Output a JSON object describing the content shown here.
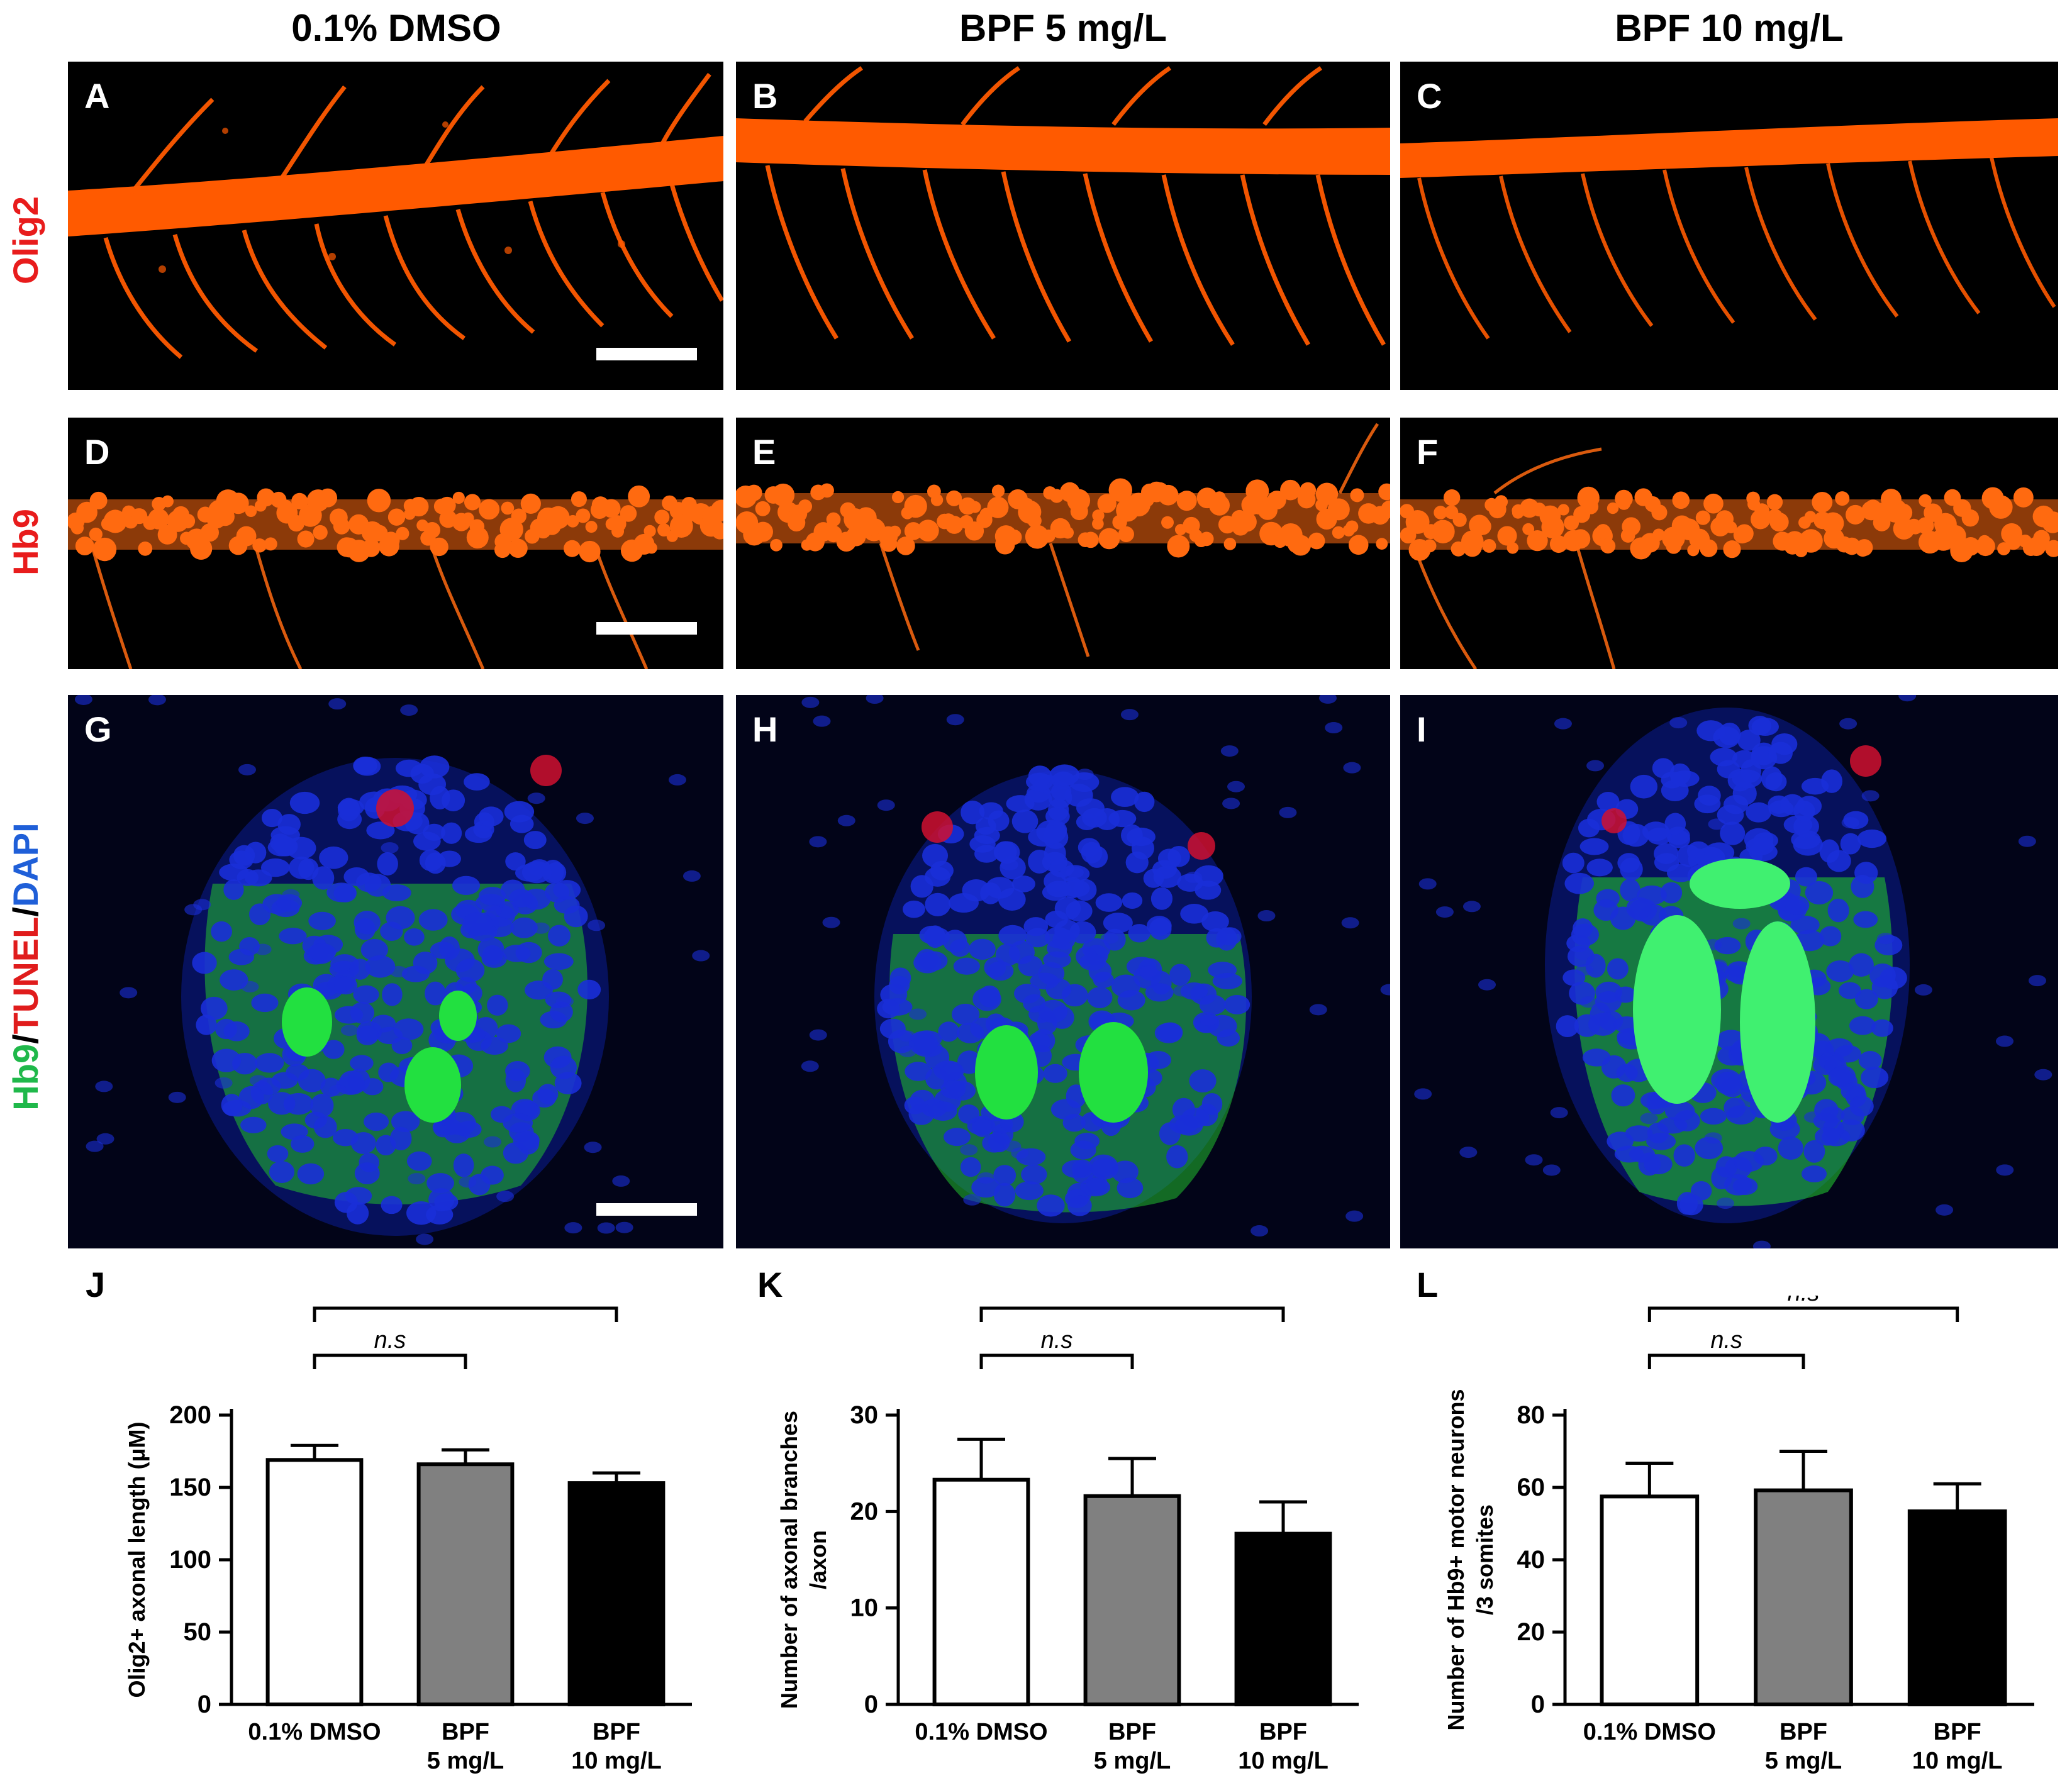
{
  "columns": [
    "0.1% DMSO",
    "BPF 5 mg/L",
    "BPF 10 mg/L"
  ],
  "row_labels": {
    "olig2": "Olig2",
    "hb9": "Hb9",
    "triple": {
      "hb9": "Hb9",
      "sep1": "/",
      "tunel": "TUNEL",
      "sep2": "/",
      "dapi": "DAPI"
    }
  },
  "panel_letters": [
    "A",
    "B",
    "C",
    "D",
    "E",
    "F",
    "G",
    "H",
    "I"
  ],
  "colors": {
    "olig2": "#ff5a00",
    "hb9_red": "#ff6a10",
    "dapi": "#1a2fd8",
    "hb9_green": "#22e040",
    "tunel": "#d01030"
  },
  "chart_data": [
    {
      "letter": "J",
      "type": "bar",
      "categories": [
        [
          "0.1% DMSO"
        ],
        [
          "BPF",
          "5 mg/L"
        ],
        [
          "BPF",
          "10 mg/L"
        ]
      ],
      "values": [
        169,
        166,
        153
      ],
      "errors": [
        10,
        10,
        7
      ],
      "ylabel": [
        "Olig2+ axonal length (μM)"
      ],
      "ylim": [
        0,
        200
      ],
      "yticks": [
        0,
        50,
        100,
        150,
        200
      ],
      "bar_colors": [
        "#ffffff",
        "#808080",
        "#000000"
      ],
      "comparisons": [
        {
          "from": 0,
          "to": 1,
          "label": "n.s",
          "italic": true
        },
        {
          "from": 0,
          "to": 2,
          "label": "***",
          "italic": false
        }
      ]
    },
    {
      "letter": "K",
      "type": "bar",
      "categories": [
        [
          "0.1% DMSO"
        ],
        [
          "BPF",
          "5 mg/L"
        ],
        [
          "BPF",
          "10 mg/L"
        ]
      ],
      "values": [
        23.3,
        21.6,
        17.7
      ],
      "errors": [
        4.2,
        3.9,
        3.3
      ],
      "ylabel": [
        "Number of axonal branches",
        "/axon"
      ],
      "ylim": [
        0,
        30
      ],
      "yticks": [
        0,
        10,
        20,
        30
      ],
      "bar_colors": [
        "#ffffff",
        "#808080",
        "#000000"
      ],
      "comparisons": [
        {
          "from": 0,
          "to": 1,
          "label": "n.s",
          "italic": true
        },
        {
          "from": 0,
          "to": 2,
          "label": "***",
          "italic": false
        }
      ]
    },
    {
      "letter": "L",
      "type": "bar",
      "categories": [
        [
          "0.1% DMSO"
        ],
        [
          "BPF",
          "5 mg/L"
        ],
        [
          "BPF",
          "10 mg/L"
        ]
      ],
      "values": [
        57.5,
        59.2,
        53.4
      ],
      "errors": [
        9.2,
        10.8,
        7.6
      ],
      "ylabel": [
        "Number of Hb9+ motor neurons",
        "/3 somites"
      ],
      "ylim": [
        0,
        80
      ],
      "yticks": [
        0,
        20,
        40,
        60,
        80
      ],
      "bar_colors": [
        "#ffffff",
        "#808080",
        "#000000"
      ],
      "comparisons": [
        {
          "from": 0,
          "to": 1,
          "label": "n.s",
          "italic": true
        },
        {
          "from": 0,
          "to": 2,
          "label": "n.s",
          "italic": true
        }
      ]
    }
  ]
}
